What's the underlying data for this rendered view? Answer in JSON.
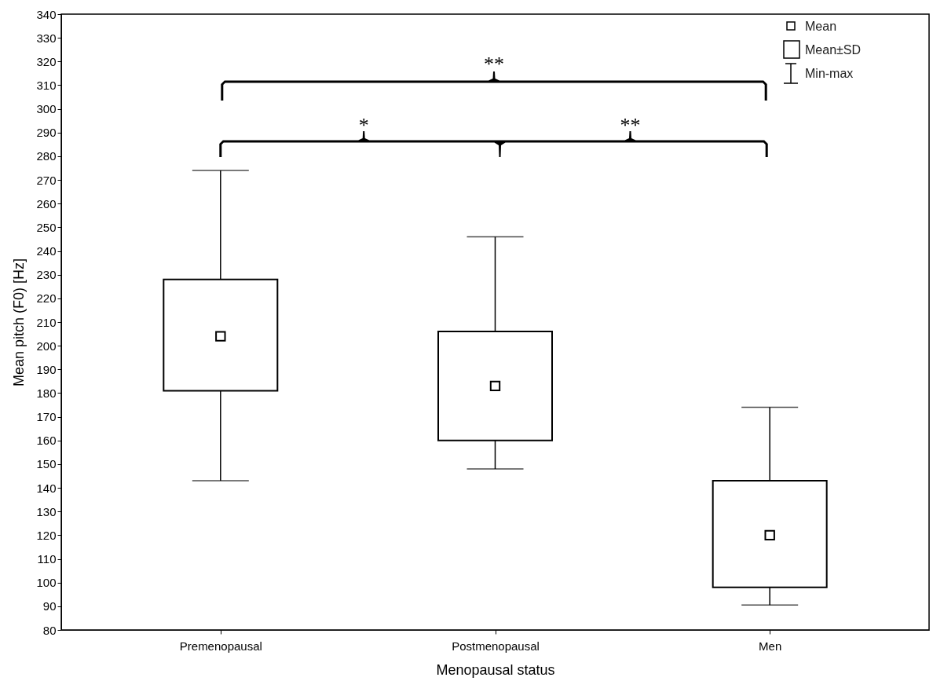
{
  "chart_data": {
    "type": "box",
    "xlabel": "Menopausal status",
    "ylabel": "Mean pitch (F0) [Hz]",
    "categories": [
      "Premenopausal",
      "Postmenopausal",
      "Men"
    ],
    "boxes": [
      {
        "low": 143,
        "q1": 181,
        "q3": 228,
        "high": 274,
        "mean": 204
      },
      {
        "low": 148,
        "q1": 160,
        "q3": 206,
        "high": 246,
        "mean": 183
      },
      {
        "low": 90.5,
        "q1": 98,
        "q3": 143,
        "high": 174,
        "mean": 120
      }
    ],
    "ylim": [
      80,
      340
    ],
    "yticks": [
      80,
      90,
      100,
      110,
      120,
      130,
      140,
      150,
      160,
      170,
      180,
      190,
      200,
      210,
      220,
      230,
      240,
      250,
      260,
      270,
      280,
      290,
      300,
      310,
      320,
      330,
      340
    ],
    "grid": false,
    "marker": "square",
    "annotations": [
      "**",
      "*",
      "**",
      "Mean",
      "Mean±SD",
      "Min-max"
    ]
  }
}
